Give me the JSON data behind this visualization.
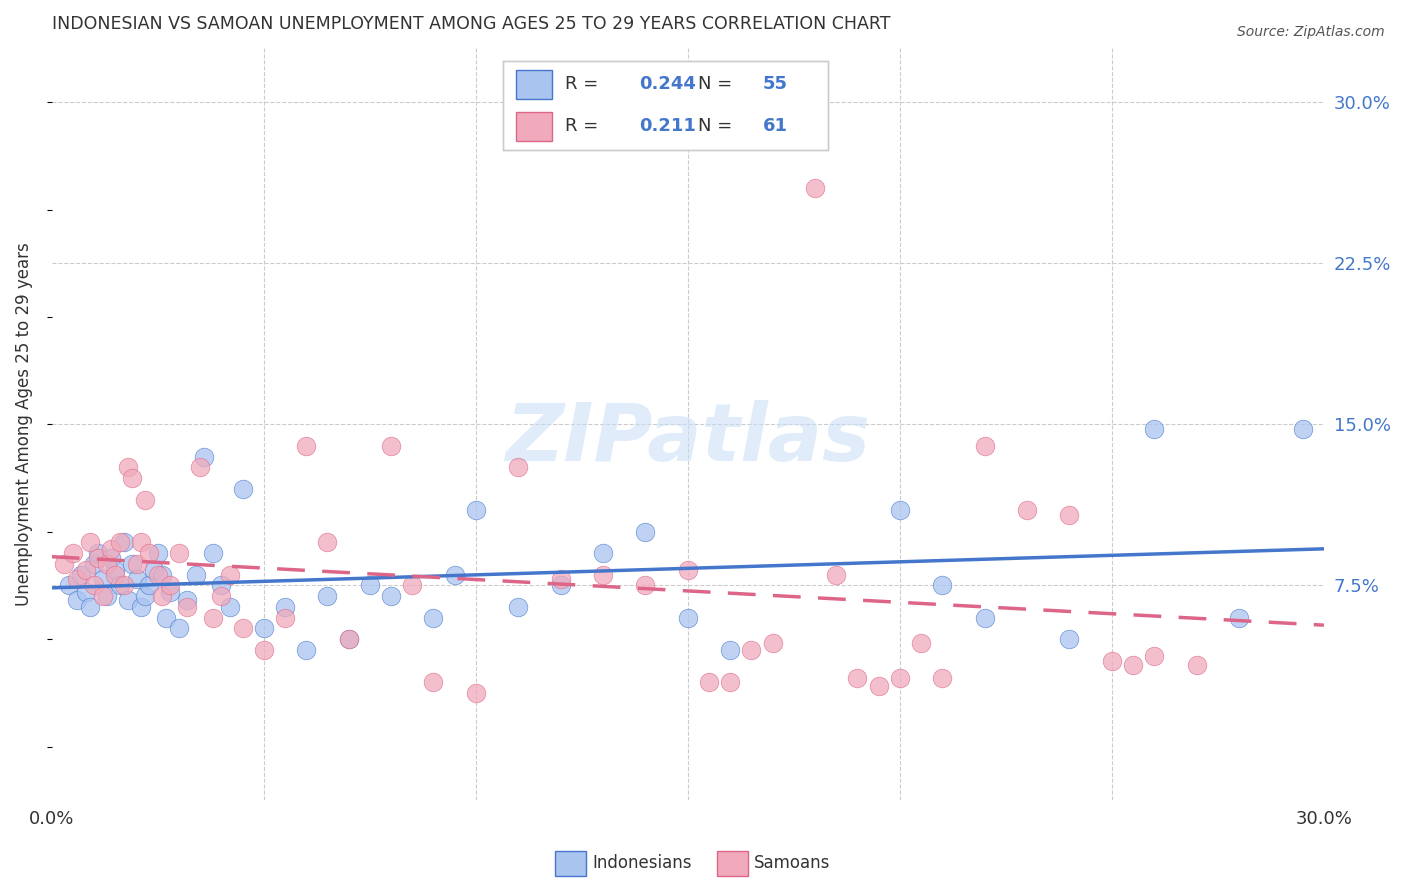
{
  "title": "INDONESIAN VS SAMOAN UNEMPLOYMENT AMONG AGES 25 TO 29 YEARS CORRELATION CHART",
  "source": "Source: ZipAtlas.com",
  "ylabel": "Unemployment Among Ages 25 to 29 years",
  "xlim": [
    0.0,
    0.3
  ],
  "ylim": [
    -0.025,
    0.325
  ],
  "ytick_positions": [
    0.075,
    0.15,
    0.225,
    0.3
  ],
  "ytick_labels": [
    "7.5%",
    "15.0%",
    "22.5%",
    "30.0%"
  ],
  "legend_R_blue": "0.244",
  "legend_N_blue": "55",
  "legend_R_pink": "0.211",
  "legend_N_pink": "61",
  "indonesian_color": "#aac4f0",
  "samoan_color": "#f0aabb",
  "line_color_blue": "#4477cc",
  "line_color_pink": "#dd6688",
  "text_color": "#333333",
  "axis_color": "#4477cc",
  "grid_color": "#cccccc",
  "background_color": "#ffffff",
  "watermark": "ZIPatlas",
  "indonesian_x": [
    0.004,
    0.006,
    0.007,
    0.008,
    0.009,
    0.01,
    0.011,
    0.012,
    0.013,
    0.014,
    0.015,
    0.016,
    0.017,
    0.018,
    0.019,
    0.02,
    0.021,
    0.022,
    0.023,
    0.024,
    0.025,
    0.026,
    0.027,
    0.028,
    0.03,
    0.032,
    0.034,
    0.036,
    0.038,
    0.04,
    0.042,
    0.045,
    0.05,
    0.055,
    0.06,
    0.065,
    0.07,
    0.075,
    0.08,
    0.09,
    0.095,
    0.1,
    0.11,
    0.12,
    0.13,
    0.14,
    0.15,
    0.16,
    0.2,
    0.21,
    0.22,
    0.24,
    0.26,
    0.28,
    0.295
  ],
  "indonesian_y": [
    0.075,
    0.068,
    0.08,
    0.072,
    0.065,
    0.085,
    0.09,
    0.078,
    0.07,
    0.088,
    0.082,
    0.075,
    0.095,
    0.068,
    0.085,
    0.078,
    0.065,
    0.07,
    0.075,
    0.082,
    0.09,
    0.08,
    0.06,
    0.072,
    0.055,
    0.068,
    0.08,
    0.135,
    0.09,
    0.075,
    0.065,
    0.12,
    0.055,
    0.065,
    0.045,
    0.07,
    0.05,
    0.075,
    0.07,
    0.06,
    0.08,
    0.11,
    0.065,
    0.075,
    0.09,
    0.1,
    0.06,
    0.045,
    0.11,
    0.075,
    0.06,
    0.05,
    0.148,
    0.06,
    0.148
  ],
  "samoan_x": [
    0.003,
    0.005,
    0.006,
    0.008,
    0.009,
    0.01,
    0.011,
    0.012,
    0.013,
    0.014,
    0.015,
    0.016,
    0.017,
    0.018,
    0.019,
    0.02,
    0.021,
    0.022,
    0.023,
    0.025,
    0.026,
    0.028,
    0.03,
    0.032,
    0.035,
    0.038,
    0.04,
    0.042,
    0.045,
    0.05,
    0.055,
    0.06,
    0.065,
    0.07,
    0.08,
    0.085,
    0.09,
    0.1,
    0.11,
    0.12,
    0.13,
    0.14,
    0.15,
    0.155,
    0.16,
    0.165,
    0.17,
    0.18,
    0.185,
    0.19,
    0.195,
    0.2,
    0.205,
    0.21,
    0.22,
    0.23,
    0.24,
    0.25,
    0.255,
    0.26,
    0.27
  ],
  "samoan_y": [
    0.085,
    0.09,
    0.078,
    0.082,
    0.095,
    0.075,
    0.088,
    0.07,
    0.085,
    0.092,
    0.08,
    0.095,
    0.075,
    0.13,
    0.125,
    0.085,
    0.095,
    0.115,
    0.09,
    0.08,
    0.07,
    0.075,
    0.09,
    0.065,
    0.13,
    0.06,
    0.07,
    0.08,
    0.055,
    0.045,
    0.06,
    0.14,
    0.095,
    0.05,
    0.14,
    0.075,
    0.03,
    0.025,
    0.13,
    0.078,
    0.08,
    0.075,
    0.082,
    0.03,
    0.03,
    0.045,
    0.048,
    0.26,
    0.08,
    0.032,
    0.028,
    0.032,
    0.048,
    0.032,
    0.14,
    0.11,
    0.108,
    0.04,
    0.038,
    0.042,
    0.038
  ]
}
